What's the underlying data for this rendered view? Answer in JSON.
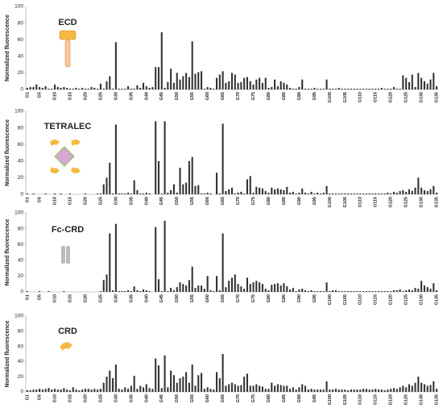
{
  "chart_data": [
    {
      "type": "bar",
      "title": "ECD",
      "y_label": "Normalized fluorescence",
      "color": "#333333",
      "ylim": [
        0,
        100
      ],
      "yticks": [
        0,
        20,
        40,
        60,
        80,
        100
      ],
      "categories": [
        "G1",
        null,
        null,
        null,
        "G5",
        null,
        null,
        null,
        null,
        "G10",
        null,
        null,
        null,
        null,
        "G15",
        null,
        null,
        null,
        null,
        "G20",
        null,
        null,
        null,
        null,
        "G25",
        null,
        null,
        null,
        null,
        "G30",
        null,
        null,
        null,
        null,
        "G35",
        null,
        null,
        null,
        null,
        "G40",
        null,
        null,
        null,
        null,
        "G45",
        null,
        null,
        null,
        null,
        "G50",
        null,
        null,
        null,
        null,
        "G55",
        null,
        null,
        null,
        null,
        "G60",
        null,
        null,
        null,
        null,
        "G65",
        null,
        null,
        null,
        null,
        "G70",
        null,
        null,
        null,
        null,
        "G75",
        null,
        null,
        null,
        null,
        "G80",
        null,
        null,
        null,
        null,
        "G85",
        null,
        null,
        null,
        null,
        "G90",
        null,
        null,
        null,
        null,
        "G95",
        null,
        null,
        null,
        null,
        "G100",
        null,
        null,
        null,
        null,
        "G105",
        null,
        null,
        null,
        null,
        "G110",
        null,
        null,
        null,
        null,
        "G115",
        null,
        null,
        null,
        null,
        "G120",
        null,
        null,
        null,
        null,
        "G125",
        null,
        null,
        null,
        null,
        "G130",
        null,
        null,
        null,
        null,
        "G135"
      ],
      "values": [
        2,
        3,
        3,
        6,
        3,
        2,
        4,
        1,
        1,
        6,
        3,
        2,
        3,
        2,
        1,
        1,
        2,
        1,
        2,
        1,
        1,
        3,
        2,
        1,
        7,
        1,
        10,
        16,
        1,
        57,
        1,
        1,
        1,
        4,
        1,
        1,
        5,
        2,
        8,
        4,
        2,
        3,
        27,
        27,
        69,
        2,
        9,
        25,
        8,
        20,
        12,
        16,
        20,
        15,
        58,
        19,
        21,
        22,
        1,
        3,
        2,
        1,
        14,
        18,
        22,
        8,
        10,
        20,
        18,
        8,
        9,
        14,
        15,
        10,
        6,
        12,
        14,
        8,
        14,
        2,
        3,
        12,
        4,
        10,
        8,
        6,
        2,
        1,
        1,
        3,
        12,
        1,
        1,
        1,
        2,
        1,
        1,
        1,
        12,
        1,
        1,
        1,
        2,
        1,
        1,
        1,
        1,
        1,
        1,
        1,
        1,
        1,
        1,
        1,
        1,
        1,
        2,
        1,
        1,
        1,
        3,
        1,
        1,
        17,
        14,
        9,
        18,
        3,
        20,
        14,
        10,
        7,
        12,
        20,
        4
      ]
    },
    {
      "type": "bar",
      "title": "TETRALEC",
      "y_label": "Normalized fluorescence",
      "color": "#333333",
      "ylim": [
        0,
        100
      ],
      "yticks": [
        0,
        20,
        40,
        60,
        80,
        100
      ],
      "categories": [
        "G1",
        null,
        null,
        null,
        "G5",
        null,
        null,
        null,
        null,
        "G10",
        null,
        null,
        null,
        null,
        "G15",
        null,
        null,
        null,
        null,
        "G20",
        null,
        null,
        null,
        null,
        "G25",
        null,
        null,
        null,
        null,
        "G30",
        null,
        null,
        null,
        null,
        "G35",
        null,
        null,
        null,
        null,
        "G40",
        null,
        null,
        null,
        null,
        "G45",
        null,
        null,
        null,
        null,
        "G50",
        null,
        null,
        null,
        null,
        "G55",
        null,
        null,
        null,
        null,
        "G60",
        null,
        null,
        null,
        null,
        "G65",
        null,
        null,
        null,
        null,
        "G70",
        null,
        null,
        null,
        null,
        "G75",
        null,
        null,
        null,
        null,
        "G80",
        null,
        null,
        null,
        null,
        "G85",
        null,
        null,
        null,
        null,
        "G90",
        null,
        null,
        null,
        null,
        "G95",
        null,
        null,
        null,
        null,
        "G100",
        null,
        null,
        null,
        null,
        "G105",
        null,
        null,
        null,
        null,
        "G110",
        null,
        null,
        null,
        null,
        "G115",
        null,
        null,
        null,
        null,
        "G120",
        null,
        null,
        null,
        null,
        "G125",
        null,
        null,
        null,
        null,
        "G130",
        null,
        null,
        null,
        null,
        "G135"
      ],
      "values": [
        1,
        0,
        1,
        0,
        0,
        0,
        1,
        0,
        0,
        1,
        0,
        1,
        0,
        0,
        1,
        0,
        0,
        0,
        0,
        1,
        0,
        0,
        0,
        1,
        1,
        12,
        20,
        38,
        1,
        84,
        1,
        1,
        1,
        2,
        1,
        17,
        5,
        1,
        1,
        2,
        1,
        0,
        88,
        40,
        1,
        88,
        2,
        5,
        12,
        2,
        32,
        12,
        14,
        40,
        45,
        10,
        11,
        1,
        1,
        2,
        1,
        0,
        26,
        1,
        85,
        4,
        6,
        8,
        1,
        2,
        3,
        1,
        18,
        22,
        2,
        9,
        8,
        7,
        4,
        2,
        8,
        6,
        7,
        6,
        5,
        9,
        2,
        3,
        1,
        2,
        7,
        2,
        1,
        3,
        1,
        2,
        1,
        2,
        10,
        1,
        1,
        1,
        1,
        1,
        1,
        1,
        1,
        1,
        1,
        1,
        1,
        1,
        1,
        1,
        1,
        1,
        1,
        1,
        2,
        1,
        3,
        2,
        4,
        5,
        3,
        6,
        4,
        8,
        20,
        8,
        5,
        4,
        6,
        10,
        2
      ]
    },
    {
      "type": "bar",
      "title": "Fc-CRD",
      "y_label": "Normalized fluorescence",
      "color": "#333333",
      "ylim": [
        0,
        100
      ],
      "yticks": [
        0,
        20,
        40,
        60,
        80,
        100
      ],
      "categories": [
        "G1",
        null,
        null,
        null,
        "G5",
        null,
        null,
        null,
        null,
        "G10",
        null,
        null,
        null,
        null,
        "G15",
        null,
        null,
        null,
        null,
        "G20",
        null,
        null,
        null,
        null,
        "G25",
        null,
        null,
        null,
        null,
        "G30",
        null,
        null,
        null,
        null,
        "G35",
        null,
        null,
        null,
        null,
        "G40",
        null,
        null,
        null,
        null,
        "G45",
        null,
        null,
        null,
        null,
        "G50",
        null,
        null,
        null,
        null,
        "G55",
        null,
        null,
        null,
        null,
        "G60",
        null,
        null,
        null,
        null,
        "G65",
        null,
        null,
        null,
        null,
        "G70",
        null,
        null,
        null,
        null,
        "G75",
        null,
        null,
        null,
        null,
        "G80",
        null,
        null,
        null,
        null,
        "G85",
        null,
        null,
        null,
        null,
        "G90",
        null,
        null,
        null,
        null,
        "G95",
        null,
        null,
        null,
        null,
        "G100",
        null,
        null,
        null,
        null,
        "G105",
        null,
        null,
        null,
        null,
        "G110",
        null,
        null,
        null,
        null,
        "G115",
        null,
        null,
        null,
        null,
        "G120",
        null,
        null,
        null,
        null,
        "G125",
        null,
        null,
        null,
        null,
        "G130",
        null,
        null,
        null,
        null,
        "G135"
      ],
      "values": [
        1,
        0,
        0,
        0,
        1,
        0,
        0,
        1,
        0,
        0,
        0,
        0,
        1,
        0,
        0,
        0,
        0,
        0,
        0,
        0,
        0,
        0,
        0,
        0,
        1,
        15,
        22,
        74,
        2,
        86,
        1,
        1,
        1,
        2,
        1,
        7,
        2,
        1,
        3,
        2,
        1,
        0,
        82,
        16,
        1,
        90,
        1,
        5,
        2,
        6,
        12,
        10,
        8,
        15,
        32,
        5,
        8,
        8,
        4,
        20,
        2,
        1,
        20,
        2,
        74,
        6,
        14,
        18,
        22,
        10,
        7,
        4,
        18,
        10,
        12,
        14,
        12,
        10,
        4,
        2,
        9,
        10,
        11,
        8,
        11,
        7,
        3,
        5,
        1,
        3,
        4,
        2,
        1,
        2,
        1,
        1,
        1,
        1,
        12,
        1,
        2,
        2,
        1,
        1,
        1,
        1,
        1,
        1,
        1,
        1,
        1,
        1,
        1,
        1,
        1,
        1,
        1,
        1,
        1,
        1,
        2,
        2,
        3,
        1,
        2,
        3,
        2,
        5,
        4,
        14,
        8,
        6,
        4,
        11,
        2
      ]
    },
    {
      "type": "bar",
      "title": "CRD",
      "y_label": "Normalized fluorescence",
      "color": "#333333",
      "ylim": [
        0,
        100
      ],
      "yticks": [
        0,
        20,
        40,
        60,
        80,
        100
      ],
      "categories": [
        "G1",
        null,
        null,
        null,
        "G5",
        null,
        null,
        null,
        null,
        "G10",
        null,
        null,
        null,
        null,
        "G15",
        null,
        null,
        null,
        null,
        "G20",
        null,
        null,
        null,
        null,
        "G25",
        null,
        null,
        null,
        null,
        "G30",
        null,
        null,
        null,
        null,
        "G35",
        null,
        null,
        null,
        null,
        "G40",
        null,
        null,
        null,
        null,
        "G45",
        null,
        null,
        null,
        null,
        "G50",
        null,
        null,
        null,
        null,
        "G55",
        null,
        null,
        null,
        null,
        "G60",
        null,
        null,
        null,
        null,
        "G65",
        null,
        null,
        null,
        null,
        "G70",
        null,
        null,
        null,
        null,
        "G75",
        null,
        null,
        null,
        null,
        "G80",
        null,
        null,
        null,
        null,
        "G85",
        null,
        null,
        null,
        null,
        "G90",
        null,
        null,
        null,
        null,
        "G95",
        null,
        null,
        null,
        null,
        "G100",
        null,
        null,
        null,
        null,
        "G105",
        null,
        null,
        null,
        null,
        "G110",
        null,
        null,
        null,
        null,
        "G115",
        null,
        null,
        null,
        null,
        "G120",
        null,
        null,
        null,
        null,
        "G125",
        null,
        null,
        null,
        null,
        "G130",
        null,
        null,
        null,
        null,
        "G135"
      ],
      "values": [
        2,
        2,
        3,
        3,
        4,
        3,
        4,
        5,
        3,
        4,
        3,
        3,
        5,
        3,
        2,
        6,
        3,
        2,
        3,
        4,
        4,
        3,
        4,
        3,
        4,
        12,
        20,
        28,
        18,
        36,
        4,
        3,
        6,
        4,
        8,
        21,
        4,
        8,
        6,
        10,
        5,
        4,
        44,
        35,
        5,
        48,
        6,
        28,
        22,
        12,
        18,
        20,
        26,
        12,
        36,
        8,
        22,
        25,
        4,
        6,
        4,
        3,
        26,
        18,
        50,
        8,
        10,
        12,
        10,
        8,
        9,
        20,
        24,
        8,
        8,
        10,
        8,
        7,
        4,
        4,
        12,
        8,
        10,
        9,
        8,
        8,
        4,
        6,
        3,
        6,
        10,
        8,
        3,
        4,
        3,
        3,
        3,
        3,
        14,
        3,
        3,
        4,
        3,
        3,
        3,
        2,
        3,
        3,
        3,
        3,
        4,
        4,
        3,
        3,
        4,
        3,
        3,
        2,
        3,
        4,
        5,
        4,
        6,
        8,
        6,
        10,
        8,
        12,
        20,
        12,
        10,
        8,
        9,
        14,
        4
      ]
    }
  ]
}
